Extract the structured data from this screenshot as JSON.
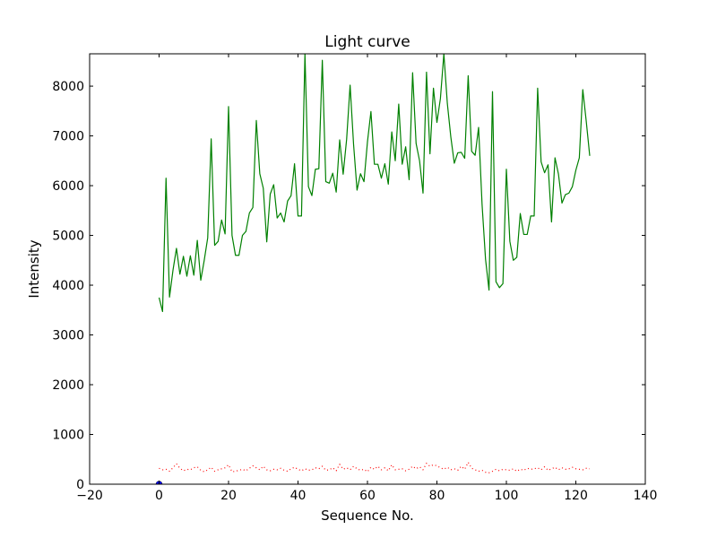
{
  "chart_data": {
    "type": "line",
    "title": "Light curve",
    "xlabel": "Sequence No.",
    "ylabel": "Intensity",
    "xlim": [
      -20,
      140
    ],
    "ylim": [
      0,
      8650
    ],
    "xticks": [
      -20,
      0,
      20,
      40,
      60,
      80,
      100,
      120,
      140
    ],
    "yticks": [
      0,
      1000,
      2000,
      3000,
      4000,
      5000,
      6000,
      7000,
      8000
    ],
    "x_tick_labels": [
      "−20",
      "0",
      "20",
      "40",
      "60",
      "80",
      "100",
      "120",
      "140"
    ],
    "y_tick_labels": [
      "0",
      "1000",
      "2000",
      "3000",
      "4000",
      "5000",
      "6000",
      "7000",
      "8000"
    ],
    "grid": false,
    "series": [
      {
        "style": "solid",
        "color": "#008000",
        "x": [
          0,
          1,
          2,
          3,
          4,
          5,
          6,
          7,
          8,
          9,
          10,
          11,
          12,
          13,
          14,
          15,
          16,
          17,
          18,
          19,
          20,
          21,
          22,
          23,
          24,
          25,
          26,
          27,
          28,
          29,
          30,
          31,
          32,
          33,
          34,
          35,
          36,
          37,
          38,
          39,
          40,
          41,
          42,
          43,
          44,
          45,
          46,
          47,
          48,
          49,
          50,
          51,
          52,
          53,
          54,
          55,
          56,
          57,
          58,
          59,
          60,
          61,
          62,
          63,
          64,
          65,
          66,
          67,
          68,
          69,
          70,
          71,
          72,
          73,
          74,
          75,
          76,
          77,
          78,
          79,
          80,
          81,
          82,
          83,
          84,
          85,
          86,
          87,
          88,
          89,
          90,
          91,
          92,
          93,
          94,
          95,
          96,
          97,
          98,
          99,
          100,
          101,
          102,
          103,
          104,
          105,
          106,
          107,
          108,
          109,
          110,
          111,
          112,
          113,
          114,
          115,
          116,
          117,
          118,
          119,
          120,
          121,
          122,
          123,
          124
        ],
        "values": [
          3750,
          3470,
          6150,
          3760,
          4300,
          4740,
          4220,
          4580,
          4180,
          4590,
          4200,
          4900,
          4100,
          4500,
          4950,
          6940,
          4800,
          4880,
          5310,
          5030,
          7590,
          5000,
          4600,
          4600,
          5000,
          5080,
          5450,
          5560,
          7310,
          6240,
          5950,
          4870,
          5830,
          6020,
          5350,
          5450,
          5270,
          5690,
          5800,
          6440,
          5390,
          5390,
          8650,
          5980,
          5800,
          6330,
          6340,
          8520,
          6080,
          6050,
          6250,
          5870,
          6920,
          6230,
          6930,
          8020,
          6830,
          5910,
          6240,
          6080,
          6880,
          7490,
          6430,
          6430,
          6150,
          6440,
          6030,
          7080,
          6500,
          7640,
          6430,
          6780,
          6120,
          8270,
          6850,
          6500,
          5850,
          8280,
          6640,
          7960,
          7270,
          7750,
          8650,
          7650,
          6980,
          6450,
          6660,
          6670,
          6550,
          8210,
          6690,
          6610,
          7170,
          5620,
          4520,
          3900,
          7890,
          4070,
          3950,
          4030,
          6330,
          4880,
          4500,
          4560,
          5440,
          5020,
          5020,
          5390,
          5390,
          7960,
          6480,
          6260,
          6420,
          5270,
          6560,
          6230,
          5650,
          5820,
          5850,
          5980,
          6310,
          6560,
          7930,
          7290,
          6600
        ]
      },
      {
        "style": "dotted",
        "color": "#ff0000",
        "x": [
          0,
          1,
          2,
          3,
          4,
          5,
          6,
          7,
          8,
          9,
          10,
          11,
          12,
          13,
          14,
          15,
          16,
          17,
          18,
          19,
          20,
          21,
          22,
          23,
          24,
          25,
          26,
          27,
          28,
          29,
          30,
          31,
          32,
          33,
          34,
          35,
          36,
          37,
          38,
          39,
          40,
          41,
          42,
          43,
          44,
          45,
          46,
          47,
          48,
          49,
          50,
          51,
          52,
          53,
          54,
          55,
          56,
          57,
          58,
          59,
          60,
          61,
          62,
          63,
          64,
          65,
          66,
          67,
          68,
          69,
          70,
          71,
          72,
          73,
          74,
          75,
          76,
          77,
          78,
          79,
          80,
          81,
          82,
          83,
          84,
          85,
          86,
          87,
          88,
          89,
          90,
          91,
          92,
          93,
          94,
          95,
          96,
          97,
          98,
          99,
          100,
          101,
          102,
          103,
          104,
          105,
          106,
          107,
          108,
          109,
          110,
          111,
          112,
          113,
          114,
          115,
          116,
          117,
          118,
          119,
          120,
          121,
          122,
          123,
          124
        ],
        "values": [
          320,
          290,
          300,
          260,
          330,
          410,
          320,
          270,
          300,
          290,
          330,
          350,
          280,
          250,
          290,
          340,
          260,
          290,
          310,
          330,
          390,
          250,
          260,
          280,
          300,
          270,
          320,
          370,
          330,
          290,
          360,
          290,
          270,
          300,
          290,
          320,
          280,
          260,
          310,
          340,
          300,
          270,
          310,
          280,
          290,
          330,
          310,
          360,
          280,
          290,
          330,
          270,
          400,
          300,
          330,
          290,
          360,
          310,
          280,
          300,
          250,
          340,
          300,
          360,
          290,
          330,
          270,
          390,
          290,
          300,
          310,
          270,
          300,
          360,
          310,
          350,
          290,
          420,
          360,
          390,
          370,
          330,
          300,
          340,
          290,
          310,
          280,
          360,
          300,
          440,
          320,
          290,
          260,
          280,
          240,
          230,
          260,
          300,
          270,
          300,
          290,
          280,
          310,
          260,
          300,
          280,
          320,
          300,
          310,
          330,
          290,
          350,
          280,
          310,
          340,
          290,
          330,
          300,
          310,
          340,
          310,
          300,
          290,
          320,
          310
        ]
      },
      {
        "style": "marker",
        "color": "#0000ff",
        "x": [
          0
        ],
        "values": [
          0
        ]
      }
    ]
  }
}
